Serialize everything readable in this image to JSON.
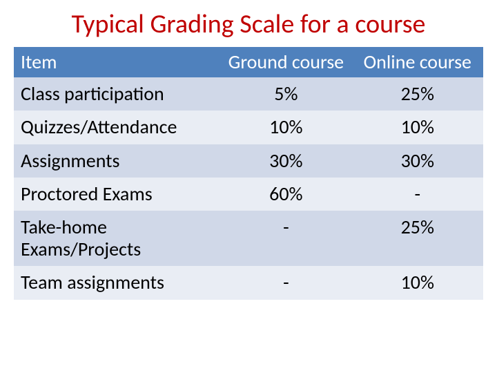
{
  "title": {
    "text": "Typical Grading Scale for a course",
    "color": "#c00000",
    "fontsize": 38
  },
  "table": {
    "type": "table",
    "header_bg": "#4f81bd",
    "header_fg": "#ffffff",
    "band_a_bg": "#d0d8e8",
    "band_b_bg": "#e9edf4",
    "cell_fontsize": 28,
    "columns": [
      {
        "key": "item",
        "label": "Item",
        "align": "left"
      },
      {
        "key": "ground",
        "label": "Ground course",
        "align": "center"
      },
      {
        "key": "online",
        "label": "Online course",
        "align": "center"
      }
    ],
    "rows": [
      {
        "item": "Class participation",
        "ground": "5%",
        "online": "25%"
      },
      {
        "item": "Quizzes/Attendance",
        "ground": "10%",
        "online": "10%"
      },
      {
        "item": "Assignments",
        "ground": "30%",
        "online": "30%"
      },
      {
        "item": "Proctored Exams",
        "ground": "60%",
        "online": "-"
      },
      {
        "item": "Take-home Exams/Projects",
        "ground": "-",
        "online": "25%"
      },
      {
        "item": "Team assignments",
        "ground": "-",
        "online": "10%"
      }
    ]
  }
}
